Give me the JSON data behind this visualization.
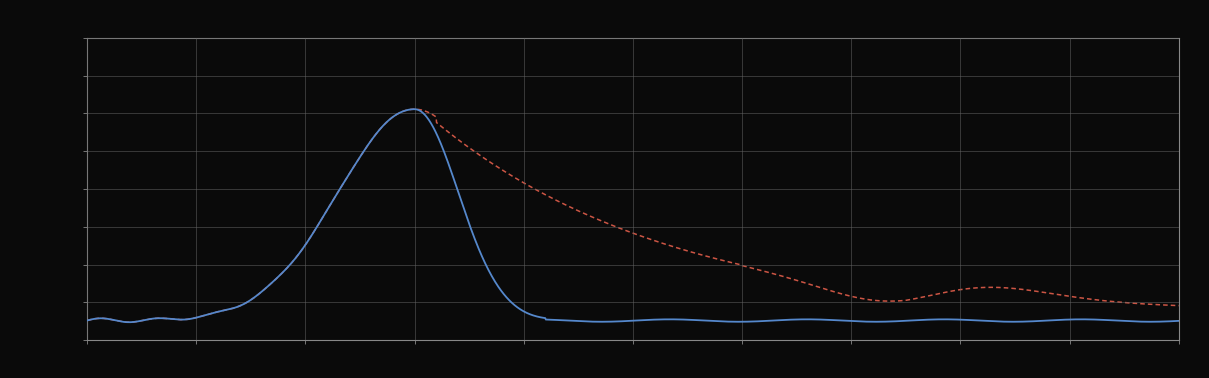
{
  "background_color": "#0a0a0a",
  "plot_bg_color": "#0a0a0a",
  "grid_color": "#666666",
  "blue_line_color": "#5588cc",
  "red_line_color": "#cc5544",
  "figsize": [
    12.09,
    3.78
  ],
  "dpi": 100,
  "xlim": [
    0,
    100
  ],
  "ylim": [
    0,
    10
  ],
  "spine_color": "#888888",
  "tick_color": "#888888",
  "grid_nx": 10,
  "grid_ny": 8
}
